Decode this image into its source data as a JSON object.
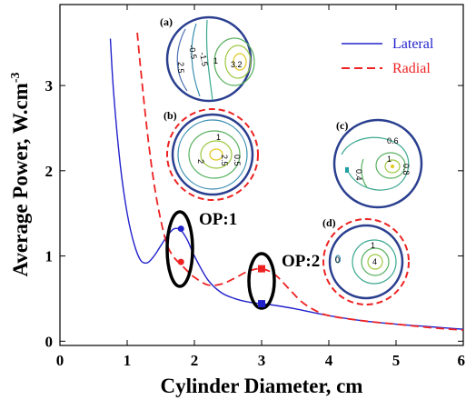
{
  "chart_data": {
    "type": "line",
    "xlabel": "Cylinder Diameter, cm",
    "ylabel": "Average Power, W.cm",
    "ylabel_superscript": "-3",
    "xlim": [
      0,
      6
    ],
    "ylim": [
      -0.05,
      3.95
    ],
    "x_ticks": [
      "0",
      "1",
      "2",
      "3",
      "4",
      "5",
      "6"
    ],
    "y_ticks": [
      "0",
      "1",
      "2",
      "3"
    ],
    "legend_position": "top-right",
    "series": [
      {
        "name": "Lateral",
        "color": "#2222cc",
        "style": "solid",
        "x": [
          0.75,
          0.8,
          0.9,
          1.0,
          1.1,
          1.2,
          1.3,
          1.4,
          1.5,
          1.6,
          1.7,
          1.8,
          1.9,
          2.0,
          2.2,
          2.4,
          2.6,
          2.8,
          3.0,
          3.2,
          3.5,
          4.0,
          4.5,
          5.0,
          5.5,
          6.0
        ],
        "y": [
          3.55,
          2.9,
          2.05,
          1.5,
          1.15,
          0.95,
          0.92,
          1.0,
          1.12,
          1.24,
          1.32,
          1.3,
          1.18,
          1.0,
          0.72,
          0.57,
          0.5,
          0.46,
          0.44,
          0.42,
          0.38,
          0.3,
          0.24,
          0.2,
          0.17,
          0.14
        ]
      },
      {
        "name": "Radial",
        "color": "#ee2222",
        "style": "dashed",
        "x": [
          1.15,
          1.2,
          1.3,
          1.4,
          1.5,
          1.6,
          1.7,
          1.8,
          1.9,
          2.0,
          2.2,
          2.4,
          2.6,
          2.8,
          3.0,
          3.2,
          3.4,
          3.6,
          3.8,
          4.0,
          4.5,
          5.0,
          5.5,
          6.0
        ],
        "y": [
          3.62,
          3.2,
          2.45,
          1.85,
          1.42,
          1.12,
          0.98,
          0.9,
          0.82,
          0.75,
          0.66,
          0.67,
          0.74,
          0.82,
          0.85,
          0.78,
          0.62,
          0.46,
          0.36,
          0.3,
          0.24,
          0.2,
          0.16,
          0.13
        ]
      }
    ],
    "markers": [
      {
        "x": 1.8,
        "y": 1.32,
        "color": "#2222cc",
        "shape": "circle"
      },
      {
        "x": 1.8,
        "y": 0.93,
        "color": "#ee2222",
        "shape": "circle"
      },
      {
        "x": 3.0,
        "y": 0.85,
        "color": "#ee2222",
        "shape": "square"
      },
      {
        "x": 3.0,
        "y": 0.44,
        "color": "#2222cc",
        "shape": "square"
      }
    ],
    "annotations": [
      {
        "text": "OP:1",
        "x": 1.8,
        "y": 1.12
      },
      {
        "text": "OP:2",
        "x": 3.0,
        "y": 0.64
      }
    ],
    "insets": [
      {
        "letter": "(a)",
        "labels": [
          "-0.5",
          "-1.5",
          "2.5",
          "1",
          "3.2"
        ]
      },
      {
        "letter": "(b)",
        "labels": [
          "1",
          "2",
          "2.5",
          "0.5"
        ]
      },
      {
        "letter": "(c)",
        "labels": [
          "0.6",
          "0.4",
          "1",
          "0.8"
        ]
      },
      {
        "letter": "(d)",
        "labels": [
          "1",
          "4",
          "0"
        ]
      }
    ]
  }
}
